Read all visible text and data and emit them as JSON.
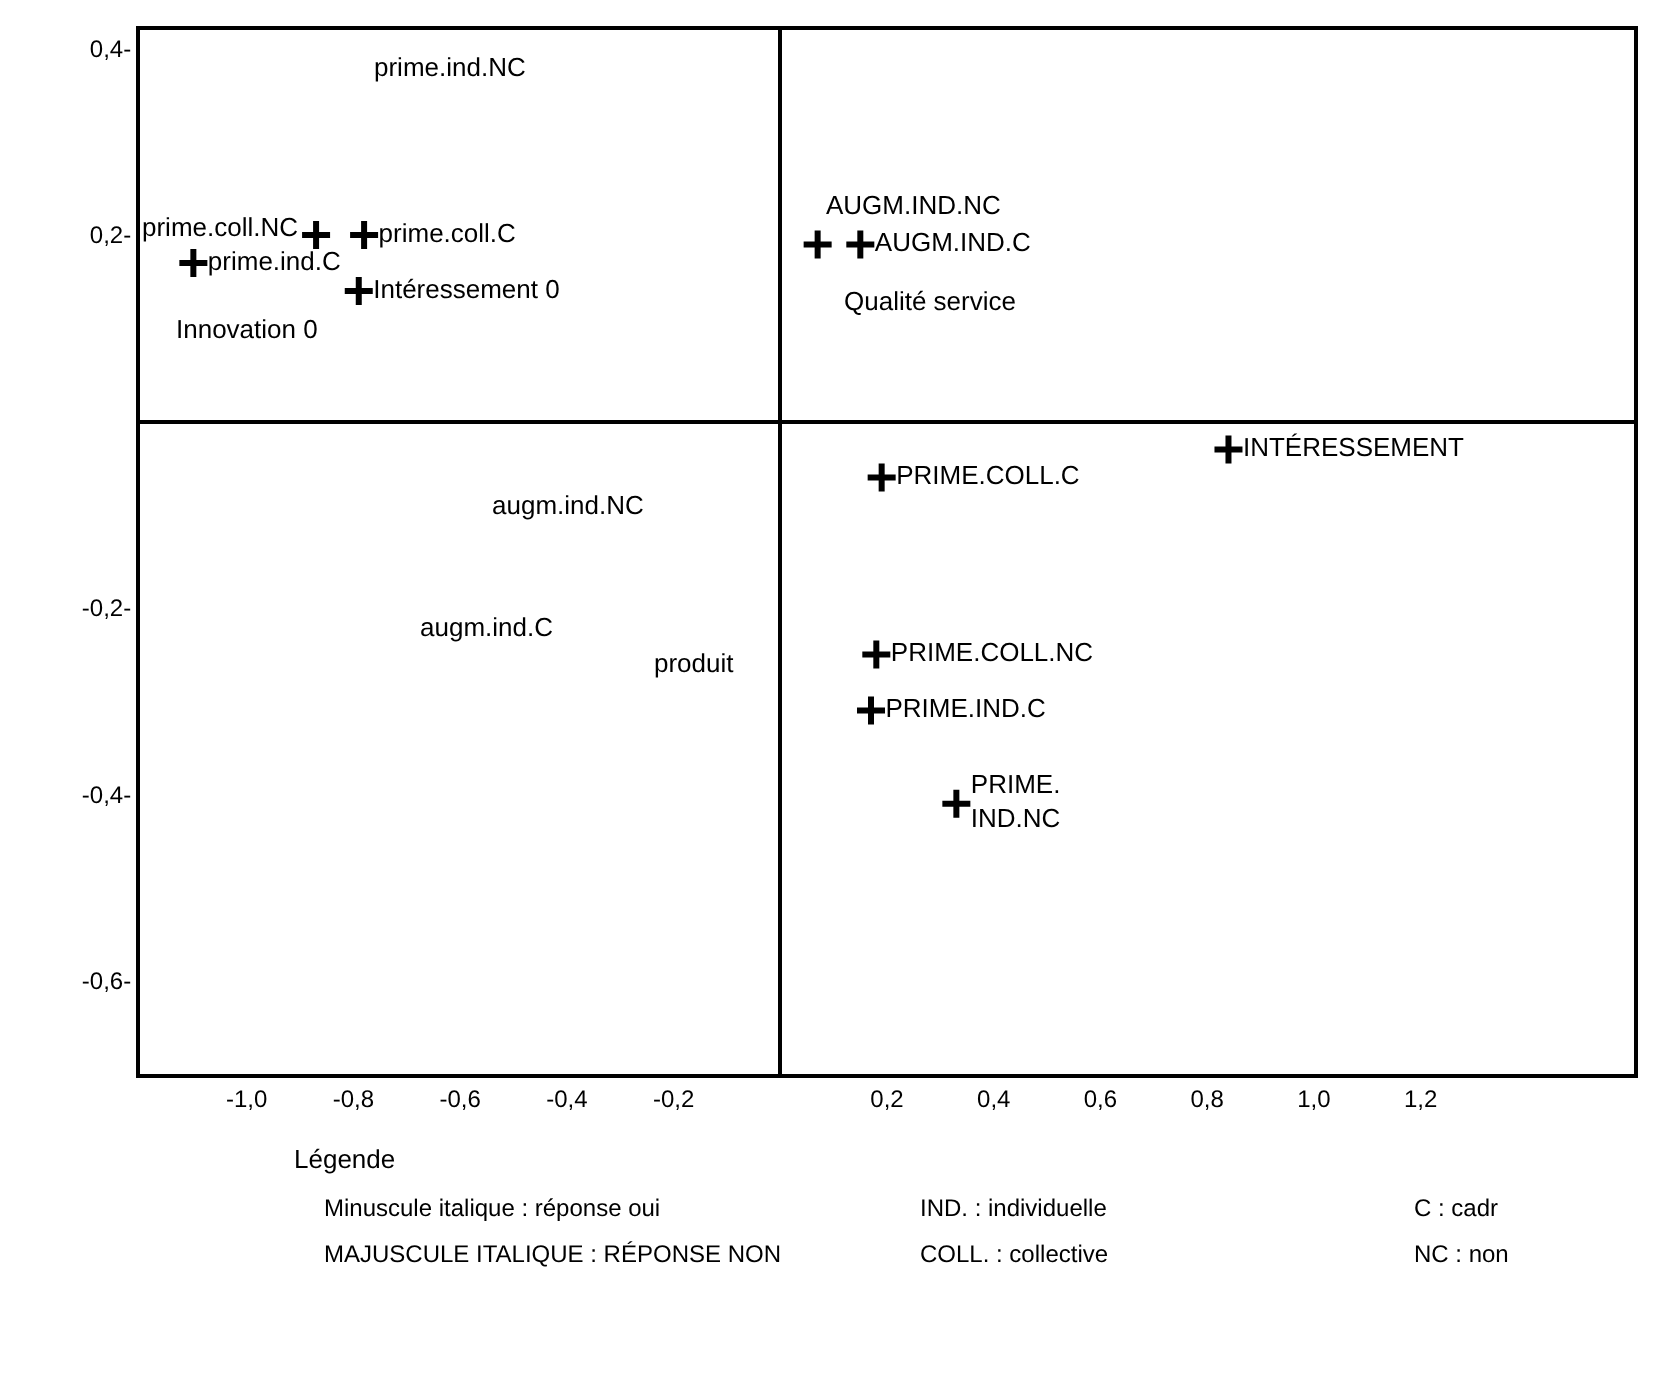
{
  "chart_data": {
    "type": "scatter",
    "marker": "cross",
    "series": [
      {
        "color": "#000000",
        "x": [
          -0.87,
          -0.78,
          -1.1,
          -0.79,
          0.07,
          0.15,
          0.84,
          0.19,
          0.18,
          0.17,
          0.33
        ],
        "values": [
          0.2,
          0.2,
          0.17,
          0.14,
          0.19,
          0.19,
          -0.03,
          -0.06,
          -0.25,
          -0.31,
          -0.41
        ],
        "value_labels": [
          null,
          "prime.coll.C",
          "prime.ind.C",
          "Intéressement 0",
          null,
          "AUGM.IND.C",
          "INTÉRESSEMENT",
          "PRIME.COLL.C",
          "PRIME.COLL.NC",
          "PRIME.IND.C",
          "PRIME.\nIND.NC"
        ]
      }
    ],
    "xlim": [
      -1.2,
      1.6
    ],
    "ylim": [
      -0.7,
      0.42
    ],
    "xticks": [
      {
        "value": -1.0,
        "label": "-1,0"
      },
      {
        "value": -0.8,
        "label": "-0,8"
      },
      {
        "value": -0.6,
        "label": "-0,6"
      },
      {
        "value": -0.4,
        "label": "-0,4"
      },
      {
        "value": -0.2,
        "label": "-0,2"
      },
      {
        "value": 0.2,
        "label": "0,2"
      },
      {
        "value": 0.4,
        "label": "0,4"
      },
      {
        "value": 0.6,
        "label": "0,6"
      },
      {
        "value": 0.8,
        "label": "0,8"
      },
      {
        "value": 1.0,
        "label": "1,0"
      },
      {
        "value": 1.2,
        "label": "1,2"
      }
    ],
    "yticks": [
      {
        "value": 0.4,
        "label": "0,4-"
      },
      {
        "value": 0.2,
        "label": "0,2-"
      },
      {
        "value": -0.2,
        "label": "-0,2-"
      },
      {
        "value": -0.4,
        "label": "-0,4-"
      },
      {
        "value": -0.6,
        "label": "-0,6-"
      }
    ],
    "annotations": [
      "prime.ind.NC",
      "prime.coll.NC",
      "Innovation 0",
      "AUGM.IND.NC",
      "Qualité service",
      "augm.ind.NC",
      "augm.ind.C",
      "produit",
      "Légende",
      "Minuscule italique : réponse oui",
      "MAJUSCULE ITALIQUE : RÉPONSE NON",
      "IND. : individuelle",
      "COLL. : collective",
      "C : cadr",
      "NC : non"
    ]
  }
}
